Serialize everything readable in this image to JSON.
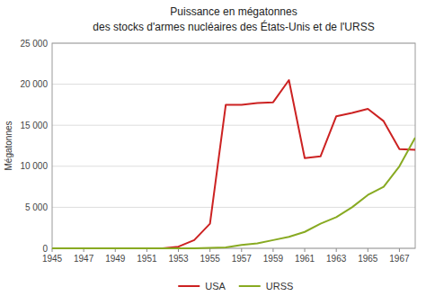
{
  "chart_data": {
    "type": "line",
    "title": "Puissance en mégatonnes",
    "subtitle": "des stocks d'armes nucléaires des États-Unis et de l'URSS",
    "y_label": "Mégatonnes",
    "x": [
      1945,
      1946,
      1947,
      1948,
      1949,
      1950,
      1951,
      1952,
      1953,
      1954,
      1955,
      1956,
      1957,
      1958,
      1959,
      1960,
      1961,
      1962,
      1963,
      1964,
      1965,
      1966,
      1967,
      1968
    ],
    "series": [
      {
        "name": "USA",
        "color": "#cc2222",
        "values": [
          0,
          0,
          0,
          0,
          0,
          0,
          0,
          0,
          200,
          1000,
          3000,
          17500,
          17500,
          17700,
          17800,
          20500,
          11000,
          11200,
          16100,
          16500,
          17000,
          15500,
          12100,
          12000
        ]
      },
      {
        "name": "URSS",
        "color": "#88aa22",
        "values": [
          0,
          0,
          0,
          0,
          0,
          0,
          0,
          0,
          0,
          0,
          50,
          100,
          400,
          600,
          1000,
          1400,
          2000,
          3000,
          3800,
          5000,
          6500,
          7500,
          10000,
          13500
        ]
      }
    ],
    "xlim": [
      1945,
      1968
    ],
    "xticks": [
      1945,
      1947,
      1949,
      1951,
      1953,
      1955,
      1957,
      1959,
      1961,
      1963,
      1965,
      1967
    ],
    "ylim": [
      0,
      25000
    ],
    "yticks": [
      0,
      {
        "value": 5000,
        "label": "5 000"
      },
      {
        "value": 10000,
        "label": "10 000"
      },
      {
        "value": 15000,
        "label": "15 000"
      },
      {
        "value": 20000,
        "label": "20 000"
      },
      {
        "value": 25000,
        "label": "25 000"
      }
    ],
    "grid": true,
    "legend": "bottom"
  }
}
